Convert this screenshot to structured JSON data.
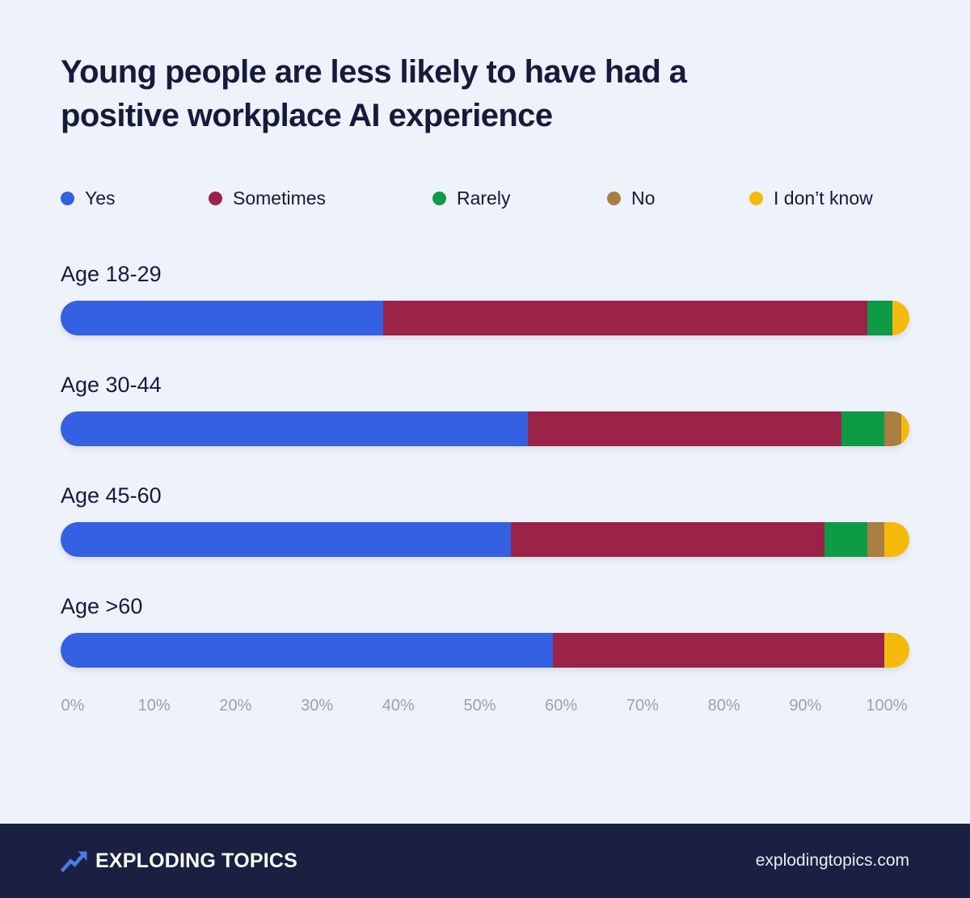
{
  "title": {
    "line1": "Young people are less likely to have had a",
    "line2": "positive workplace AI experience"
  },
  "colors": {
    "background": "#eef2fb",
    "title_text": "#161b3d",
    "axis_text": "#98a2b5",
    "footer_background": "#1a2041",
    "footer_text": "#ffffff",
    "logo_arrow": "#4a7ce8",
    "yes": "#3361e1",
    "sometimes": "#9b2348",
    "rarely": "#0d9b45",
    "no": "#aa7d40",
    "i_dont_know": "#f4ba0b"
  },
  "chart_data": {
    "type": "bar",
    "stacked": true,
    "orientation": "horizontal",
    "title": "Young people are less likely to have had a positive workplace AI experience",
    "categories": [
      "Age 18-29",
      "Age 30-44",
      "Age 45-60",
      "Age >60"
    ],
    "series": [
      {
        "name": "Yes",
        "color": "#3361e1",
        "values": [
          38,
          55,
          53,
          58
        ]
      },
      {
        "name": "Sometimes",
        "color": "#9b2348",
        "values": [
          57,
          37,
          37,
          39
        ]
      },
      {
        "name": "Rarely",
        "color": "#0d9b45",
        "values": [
          3,
          5,
          5,
          0
        ]
      },
      {
        "name": "No",
        "color": "#aa7d40",
        "values": [
          0,
          2,
          2,
          0
        ]
      },
      {
        "name": "I don’t know",
        "color": "#f4ba0b",
        "values": [
          2,
          1,
          3,
          3
        ]
      }
    ],
    "x_ticks": [
      "0%",
      "10%",
      "20%",
      "30%",
      "40%",
      "50%",
      "60%",
      "70%",
      "80%",
      "90%",
      "100%"
    ],
    "xlim": [
      0,
      100
    ],
    "legend_position": "top",
    "grid": false
  },
  "footer": {
    "brand": "EXPLODING TOPICS",
    "url": "explodingtopics.com",
    "logo_icon": "trending-up-arrow-icon"
  }
}
